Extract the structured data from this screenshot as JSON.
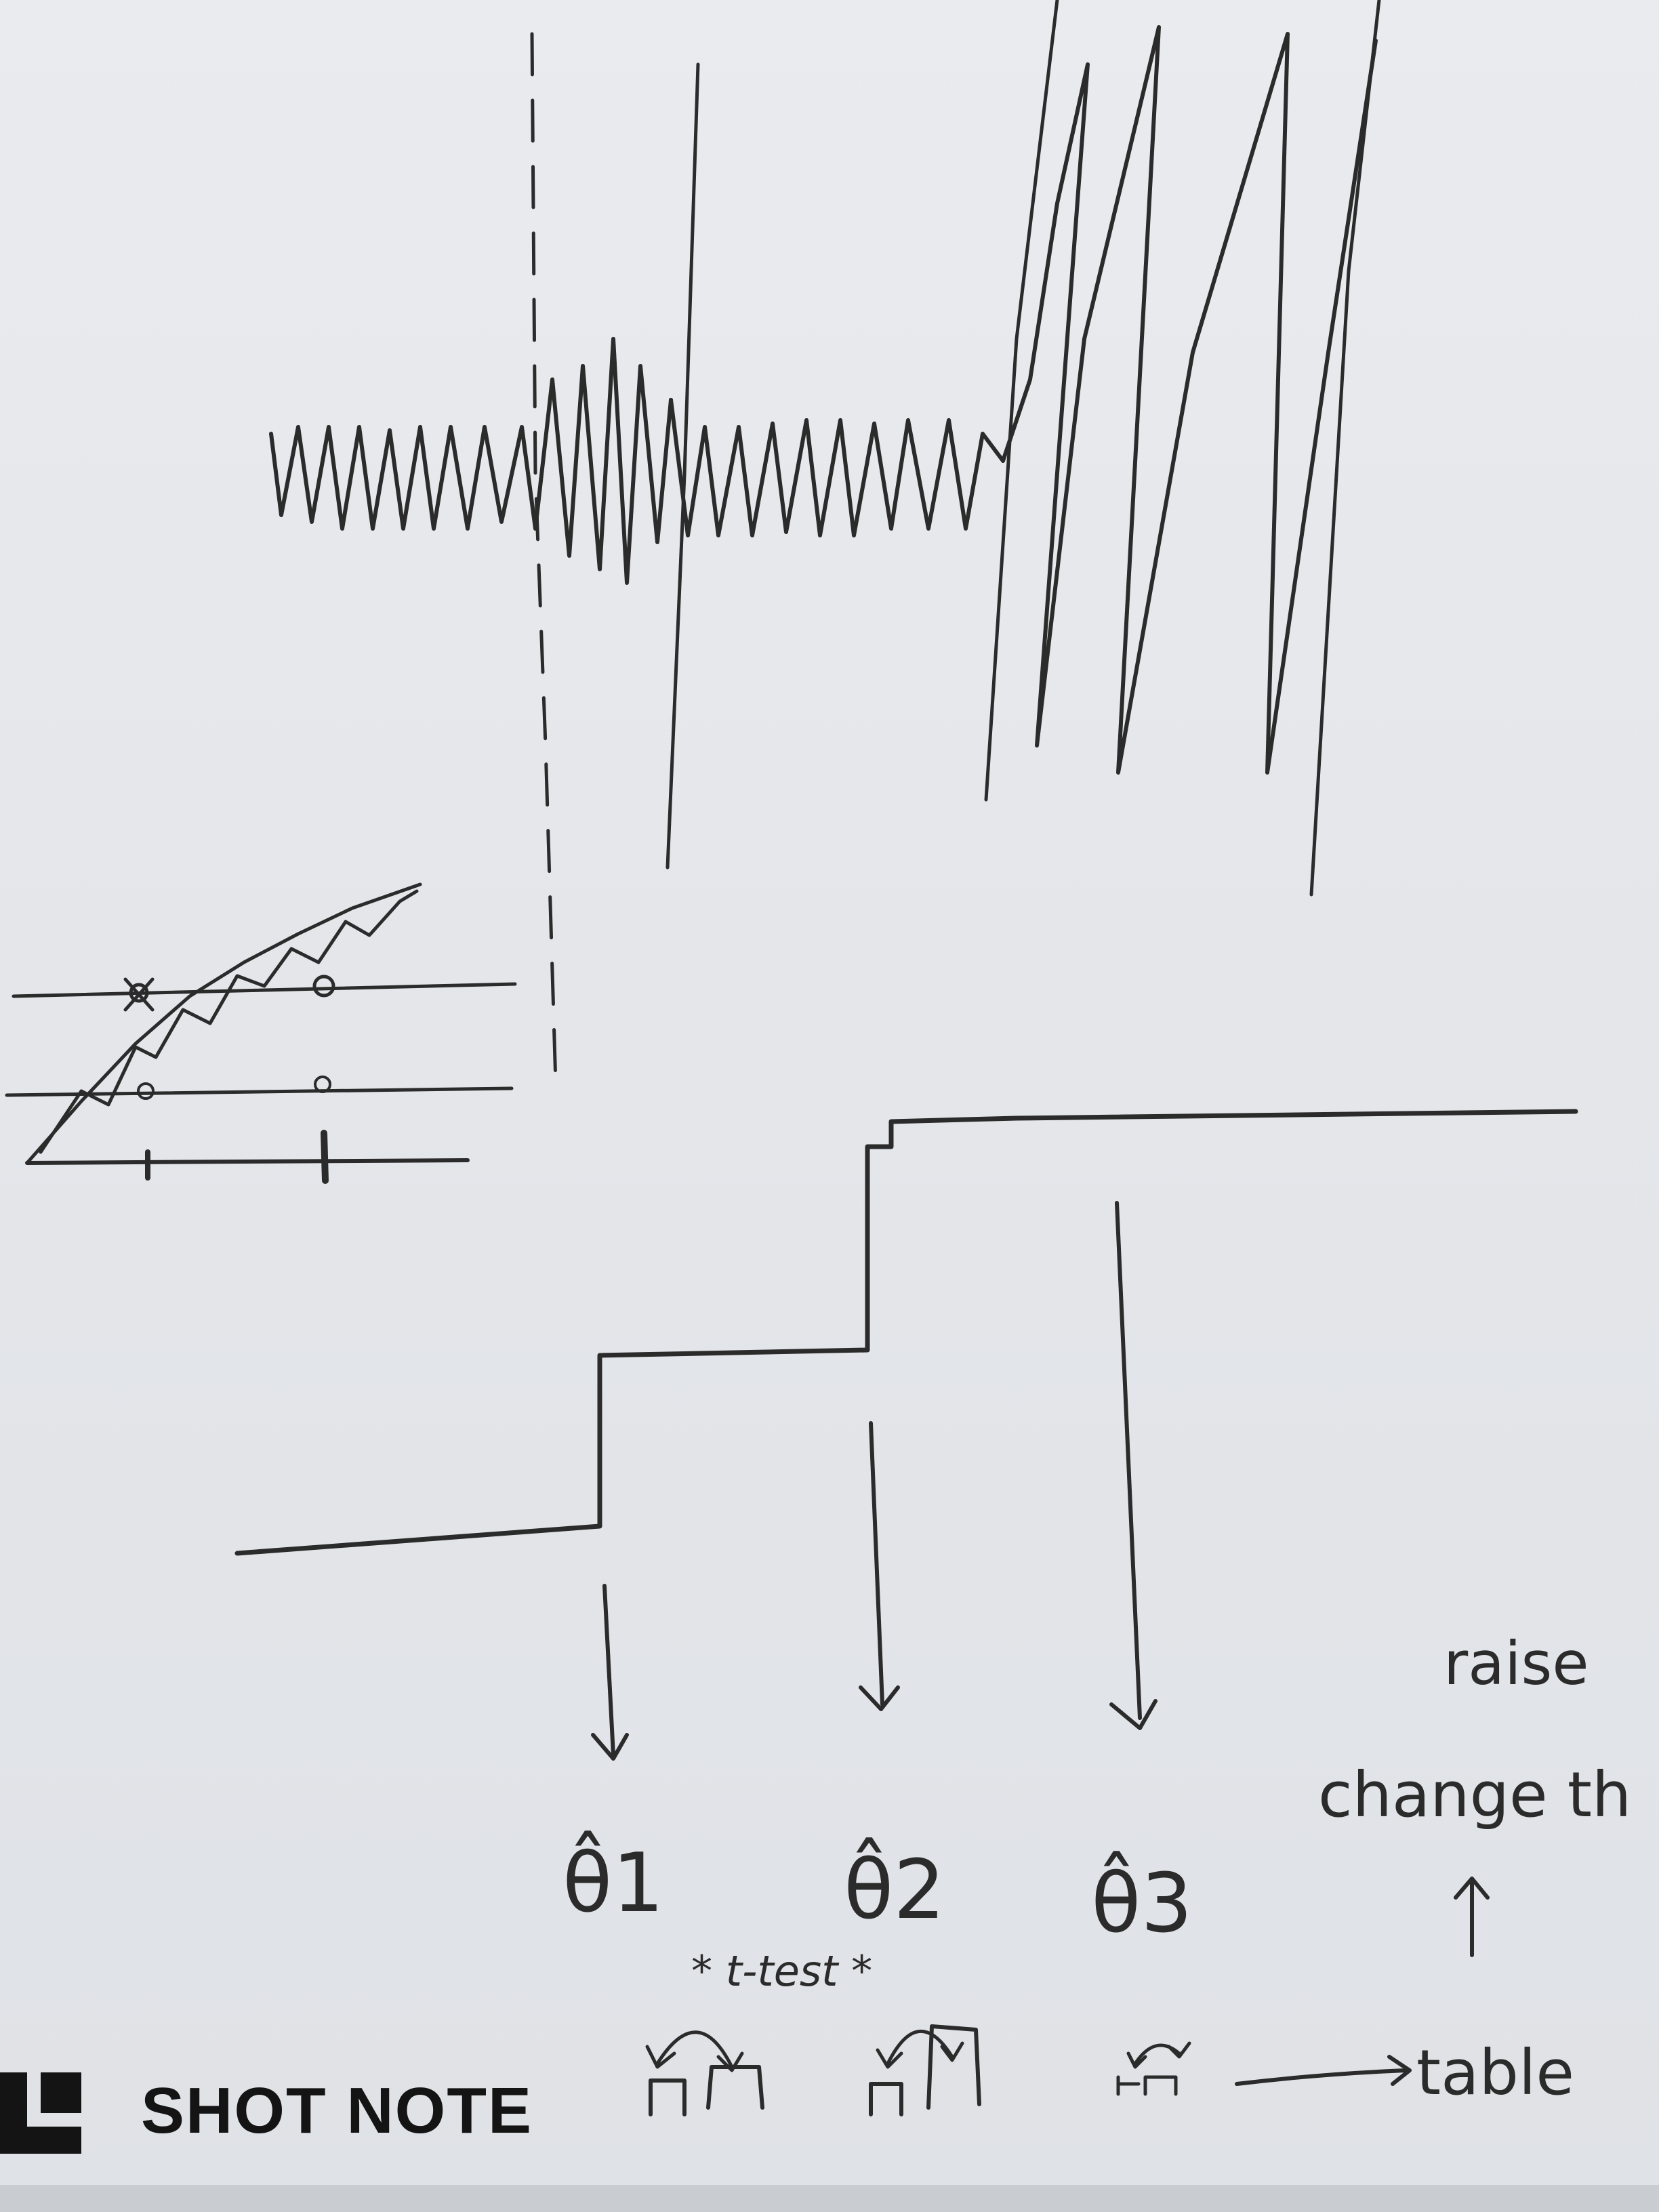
{
  "brand": {
    "name": "SHOT NOTE",
    "logo_icon": "shot-note-logo-icon",
    "color": "#141414"
  },
  "annotations": {
    "theta_1": "θ̂1",
    "theta_2": "θ̂2",
    "theta_3": "θ̂3",
    "t_test": "* t-test *",
    "table": "table",
    "raise": "raise",
    "change": "change th"
  },
  "colors": {
    "ink": "#2b2b2b",
    "board": "#e6e8eb"
  }
}
